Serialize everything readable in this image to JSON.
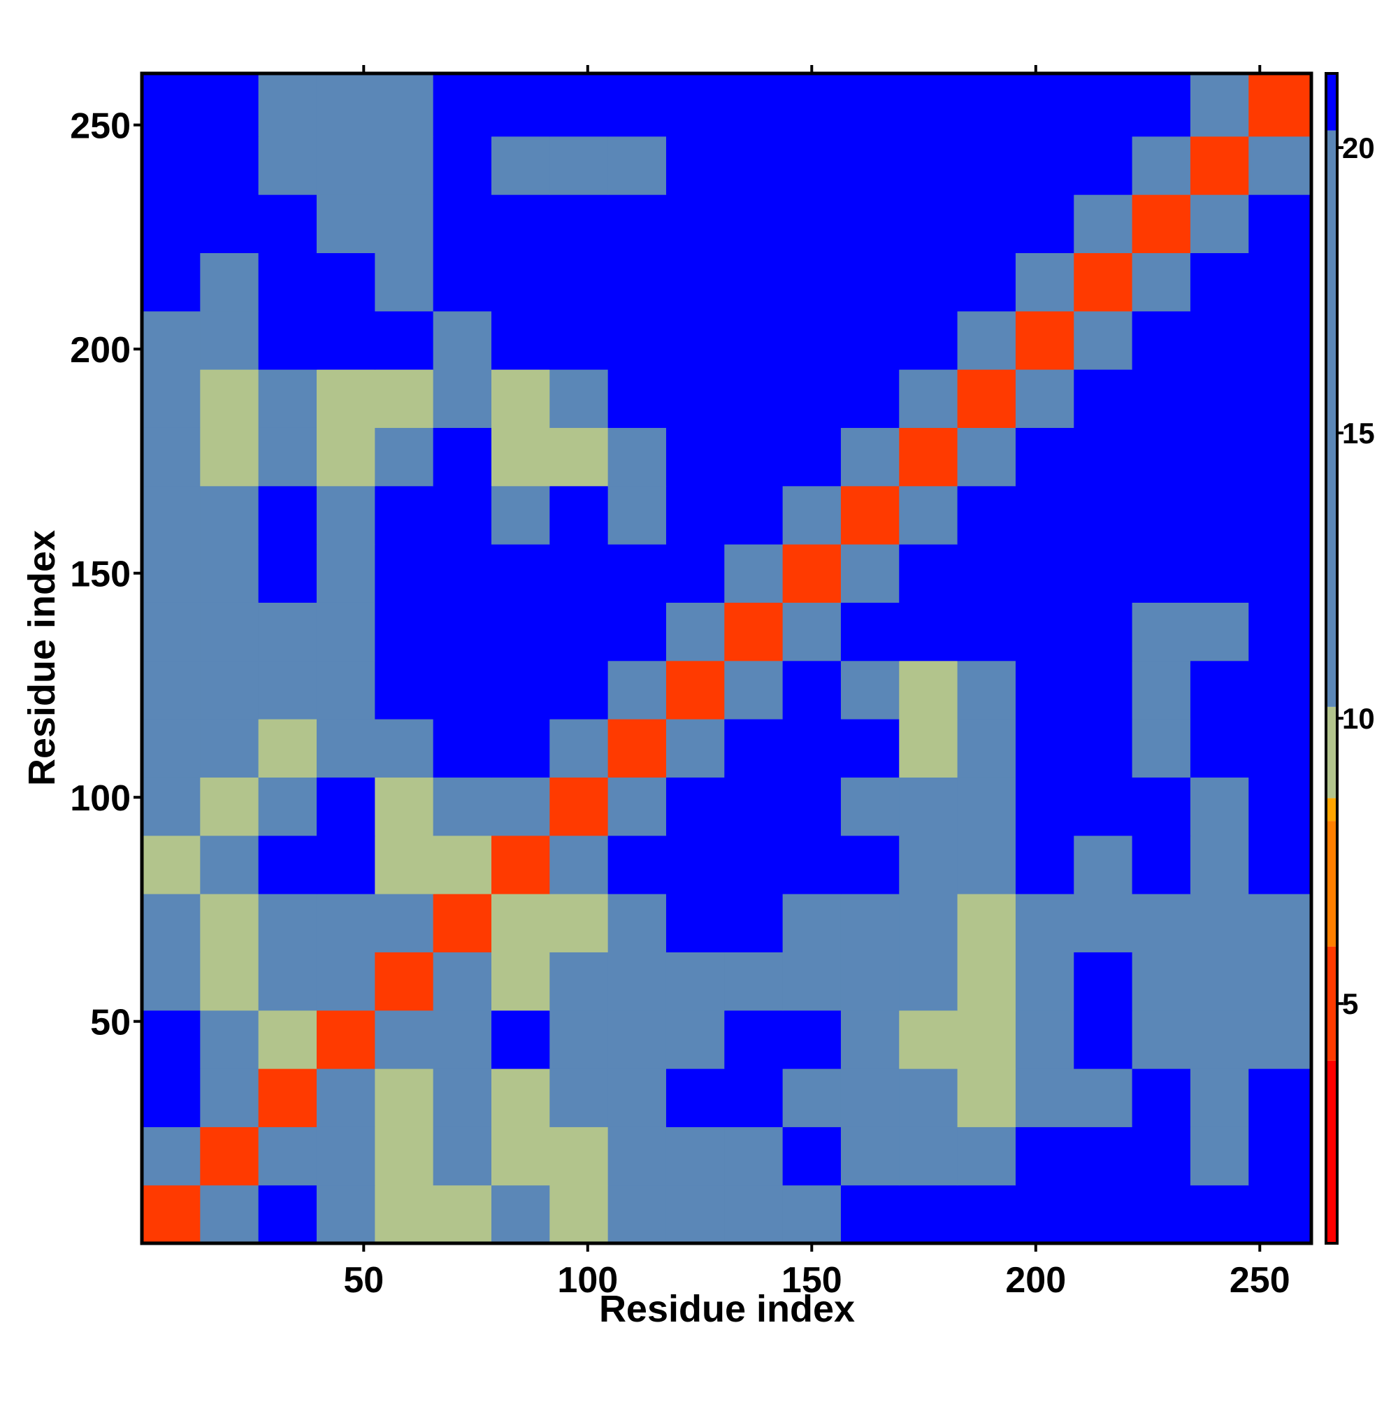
{
  "chart_data": {
    "type": "heatmap",
    "x_label": "Residue index",
    "y_label": "Residue index",
    "xbins": [
      0.5,
      13.5,
      26.5,
      39.5,
      52.5,
      65.5,
      78.5,
      91.5,
      104.5,
      117.5,
      130.5,
      143.5,
      156.5,
      169.5,
      182.5,
      195.5,
      208.5,
      221.5,
      234.5,
      247.5,
      261.5
    ],
    "ybins": [
      0.5,
      13.5,
      26.5,
      39.5,
      52.5,
      65.5,
      78.5,
      91.5,
      104.5,
      117.5,
      130.5,
      143.5,
      156.5,
      169.5,
      182.5,
      195.5,
      208.5,
      221.5,
      234.5,
      247.5,
      261.5
    ],
    "values": [
      [
        4,
        12,
        21,
        15,
        9,
        9,
        15,
        9,
        15,
        15,
        15,
        15,
        21,
        21,
        21,
        21,
        21,
        21,
        21,
        21
      ],
      [
        12,
        4,
        12,
        15,
        9,
        15,
        9,
        9,
        15,
        15,
        15,
        21,
        15,
        15,
        15,
        21,
        21,
        21,
        15,
        21
      ],
      [
        21,
        12,
        4,
        12,
        9,
        15,
        9,
        15,
        15,
        21,
        21,
        15,
        15,
        15,
        9,
        15,
        15,
        21,
        15,
        21
      ],
      [
        21,
        15,
        9,
        4,
        12,
        15,
        21,
        15,
        15,
        15,
        21,
        21,
        15,
        9,
        9,
        15,
        21,
        15,
        15,
        15
      ],
      [
        15,
        9,
        15,
        12,
        4,
        12,
        9,
        15,
        15,
        15,
        15,
        15,
        15,
        15,
        9,
        15,
        21,
        15,
        15,
        15
      ],
      [
        15,
        9,
        15,
        15,
        12,
        4,
        9,
        9,
        15,
        21,
        21,
        15,
        15,
        15,
        9,
        15,
        15,
        15,
        15,
        15
      ],
      [
        9,
        15,
        21,
        21,
        9,
        9,
        4,
        12,
        21,
        21,
        21,
        21,
        21,
        15,
        15,
        21,
        15,
        21,
        15,
        21
      ],
      [
        15,
        9,
        15,
        21,
        9,
        15,
        12,
        4,
        12,
        21,
        21,
        21,
        15,
        15,
        15,
        21,
        21,
        21,
        15,
        21
      ],
      [
        15,
        15,
        9,
        15,
        15,
        21,
        21,
        12,
        4,
        12,
        21,
        21,
        21,
        9,
        15,
        21,
        21,
        15,
        21,
        21
      ],
      [
        15,
        15,
        15,
        15,
        21,
        21,
        21,
        21,
        12,
        4,
        15,
        21,
        15,
        9,
        15,
        21,
        21,
        15,
        21,
        21
      ],
      [
        15,
        15,
        15,
        15,
        21,
        21,
        21,
        21,
        21,
        15,
        4,
        12,
        21,
        21,
        21,
        21,
        21,
        15,
        15,
        21
      ],
      [
        15,
        15,
        21,
        15,
        21,
        21,
        21,
        21,
        21,
        21,
        12,
        4,
        12,
        21,
        21,
        21,
        21,
        21,
        21,
        21
      ],
      [
        15,
        15,
        21,
        15,
        21,
        21,
        15,
        21,
        15,
        21,
        21,
        12,
        4,
        12,
        21,
        21,
        21,
        21,
        21,
        21
      ],
      [
        15,
        9,
        15,
        9,
        15,
        21,
        9,
        9,
        15,
        21,
        21,
        21,
        12,
        4,
        12,
        21,
        21,
        21,
        21,
        21
      ],
      [
        15,
        9,
        15,
        9,
        9,
        15,
        9,
        15,
        21,
        21,
        21,
        21,
        21,
        12,
        4,
        12,
        21,
        21,
        21,
        21
      ],
      [
        15,
        15,
        21,
        21,
        21,
        15,
        21,
        21,
        21,
        21,
        21,
        21,
        21,
        21,
        12,
        4,
        12,
        21,
        21,
        21
      ],
      [
        21,
        15,
        21,
        21,
        15,
        21,
        21,
        21,
        21,
        21,
        21,
        21,
        21,
        21,
        21,
        12,
        4,
        12,
        21,
        21
      ],
      [
        21,
        21,
        21,
        15,
        15,
        21,
        21,
        21,
        21,
        21,
        21,
        21,
        21,
        21,
        21,
        21,
        12,
        4,
        12,
        21
      ],
      [
        21,
        21,
        15,
        15,
        15,
        21,
        15,
        15,
        15,
        21,
        21,
        21,
        21,
        21,
        21,
        21,
        21,
        12,
        4,
        12
      ],
      [
        21,
        21,
        15,
        15,
        15,
        21,
        21,
        21,
        21,
        21,
        21,
        21,
        21,
        21,
        21,
        21,
        21,
        21,
        12,
        4
      ]
    ],
    "xlim": [
      0.5,
      261.5
    ],
    "ylim": [
      0.5,
      261.5
    ],
    "xticks": [
      50,
      100,
      150,
      200,
      250
    ],
    "yticks": [
      50,
      100,
      150,
      200,
      250
    ],
    "clim": [
      0.8,
      21.3
    ],
    "cticks": [
      5,
      10,
      15,
      20
    ],
    "colorscale": [
      [
        0.8,
        "#ff0000"
      ],
      [
        4,
        "#ff3a00"
      ],
      [
        6,
        "#ff7f00"
      ],
      [
        8.2,
        "#ffa500"
      ],
      [
        8.6,
        "#b2c48c"
      ],
      [
        10.2,
        "#5b87b7"
      ],
      [
        20.3,
        "#0000ff"
      ]
    ]
  }
}
